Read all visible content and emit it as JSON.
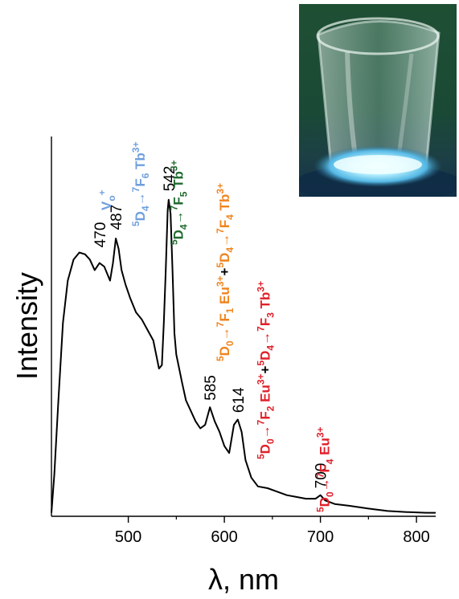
{
  "chart_data": {
    "type": "line",
    "title": "",
    "xlabel": "λ, nm",
    "ylabel": "Intensity",
    "xlim": [
      420,
      820
    ],
    "ylim": [
      0,
      1
    ],
    "xticks": [
      500,
      600,
      700,
      800
    ],
    "grid": false,
    "legend": "none",
    "series": [
      {
        "color": "#000000",
        "x": [
          420,
          423,
          427,
          432,
          437,
          443,
          449,
          455,
          460,
          465,
          470,
          475,
          478,
          481,
          484,
          487,
          490,
          493,
          497,
          502,
          508,
          514,
          520,
          526,
          532,
          535,
          537,
          539,
          541,
          542,
          544,
          546,
          548,
          550,
          553,
          556,
          560,
          565,
          570,
          575,
          580,
          585,
          590,
          595,
          600,
          605,
          610,
          614,
          618,
          622,
          628,
          635,
          645,
          655,
          665,
          675,
          685,
          695,
          700,
          705,
          715,
          730,
          750,
          770,
          790,
          810,
          820
        ],
        "y": [
          0.01,
          0.12,
          0.32,
          0.55,
          0.67,
          0.73,
          0.75,
          0.745,
          0.73,
          0.7,
          0.72,
          0.71,
          0.69,
          0.67,
          0.72,
          0.79,
          0.76,
          0.7,
          0.66,
          0.62,
          0.58,
          0.56,
          0.53,
          0.5,
          0.42,
          0.43,
          0.55,
          0.7,
          0.87,
          0.9,
          0.86,
          0.7,
          0.52,
          0.46,
          0.42,
          0.38,
          0.33,
          0.3,
          0.27,
          0.25,
          0.26,
          0.31,
          0.27,
          0.24,
          0.2,
          0.18,
          0.26,
          0.275,
          0.24,
          0.16,
          0.11,
          0.085,
          0.08,
          0.07,
          0.06,
          0.055,
          0.05,
          0.05,
          0.06,
          0.045,
          0.035,
          0.03,
          0.022,
          0.015,
          0.012,
          0.01,
          0.01
        ]
      }
    ],
    "peak_labels": [
      {
        "x": 470,
        "y": 0.755,
        "text": "470"
      },
      {
        "x": 487,
        "y": 0.805,
        "text": "487"
      },
      {
        "x": 542,
        "y": 0.915,
        "text": "542"
      },
      {
        "x": 585,
        "y": 0.32,
        "text": "585"
      },
      {
        "x": 614,
        "y": 0.285,
        "text": "614"
      },
      {
        "x": 700,
        "y": 0.07,
        "text": "700"
      }
    ],
    "annotations": [
      {
        "id": "vo",
        "x": 482,
        "color": "#6f9fde",
        "parts": [
          {
            "t": "V",
            "s": "n"
          },
          {
            "t": "o",
            "s": "sub"
          },
          {
            "t": "+",
            "s": "sup"
          }
        ]
      },
      {
        "id": "tb-5d4-7f6",
        "x": 517,
        "color": "#6f9fde",
        "parts": [
          {
            "t": "5",
            "s": "sup"
          },
          {
            "t": "D",
            "s": "n"
          },
          {
            "t": "4",
            "s": "sub"
          },
          {
            "t": "→",
            "s": "n"
          },
          {
            "t": "7",
            "s": "sup"
          },
          {
            "t": "F",
            "s": "n"
          },
          {
            "t": "6",
            "s": "sub"
          },
          {
            "t": " Tb",
            "s": "n"
          },
          {
            "t": "3+",
            "s": "sup"
          }
        ]
      },
      {
        "id": "tb-5d4-7f5",
        "x": 557,
        "color": "#1f6b2f",
        "parts": [
          {
            "t": "5",
            "s": "sup"
          },
          {
            "t": "D",
            "s": "n"
          },
          {
            "t": "4",
            "s": "sub"
          },
          {
            "t": "→",
            "s": "n"
          },
          {
            "t": "7",
            "s": "sup"
          },
          {
            "t": "F",
            "s": "n"
          },
          {
            "t": "5",
            "s": "sub"
          },
          {
            "t": " Tb",
            "s": "n"
          },
          {
            "t": "3+",
            "s": "sup"
          }
        ]
      },
      {
        "id": "eu-7f1-tb-7f4",
        "x": 605,
        "color": "#f0841e",
        "parts": [
          {
            "t": "5",
            "s": "sup"
          },
          {
            "t": "D",
            "s": "n"
          },
          {
            "t": "0",
            "s": "sub"
          },
          {
            "t": "→",
            "s": "n"
          },
          {
            "t": "7",
            "s": "sup"
          },
          {
            "t": "F",
            "s": "n"
          },
          {
            "t": "1",
            "s": "sub"
          },
          {
            "t": " Eu",
            "s": "n"
          },
          {
            "t": "3+",
            "s": "sup"
          },
          {
            "t": "+",
            "s": "n",
            "c": "#000000"
          },
          {
            "t": "5",
            "s": "sup"
          },
          {
            "t": "D",
            "s": "n"
          },
          {
            "t": "4",
            "s": "sub"
          },
          {
            "t": "→",
            "s": "n"
          },
          {
            "t": "7",
            "s": "sup"
          },
          {
            "t": "F",
            "s": "n"
          },
          {
            "t": "4",
            "s": "sub"
          },
          {
            "t": " Tb",
            "s": "n"
          },
          {
            "t": "3+",
            "s": "sup"
          }
        ]
      },
      {
        "id": "eu-7f2-tb-7f3",
        "x": 647,
        "color": "#e0202a",
        "parts": [
          {
            "t": "5",
            "s": "sup"
          },
          {
            "t": "D",
            "s": "n"
          },
          {
            "t": "0",
            "s": "sub"
          },
          {
            "t": "→",
            "s": "n"
          },
          {
            "t": "7",
            "s": "sup"
          },
          {
            "t": "F",
            "s": "n"
          },
          {
            "t": "2",
            "s": "sub"
          },
          {
            "t": " Eu",
            "s": "n"
          },
          {
            "t": "3+",
            "s": "sup"
          },
          {
            "t": "+",
            "s": "n",
            "c": "#000000"
          },
          {
            "t": "5",
            "s": "sup"
          },
          {
            "t": "D",
            "s": "n"
          },
          {
            "t": "4",
            "s": "sub"
          },
          {
            "t": "→",
            "s": "n"
          },
          {
            "t": "7",
            "s": "sup"
          },
          {
            "t": "F",
            "s": "n"
          },
          {
            "t": "3",
            "s": "sub"
          },
          {
            "t": " Tb",
            "s": "n"
          },
          {
            "t": "3+",
            "s": "sup"
          }
        ]
      },
      {
        "id": "eu-7f4",
        "x": 709,
        "color": "#e0202a",
        "parts": [
          {
            "t": "5",
            "s": "sup"
          },
          {
            "t": "D",
            "s": "n"
          },
          {
            "t": "0",
            "s": "sub"
          },
          {
            "t": "→",
            "s": "n"
          },
          {
            "t": "7",
            "s": "sup"
          },
          {
            "t": "F",
            "s": "n"
          },
          {
            "t": "4",
            "s": "sub"
          },
          {
            "t": " Eu",
            "s": "n"
          },
          {
            "t": "3+",
            "s": "sup"
          }
        ]
      }
    ]
  }
}
